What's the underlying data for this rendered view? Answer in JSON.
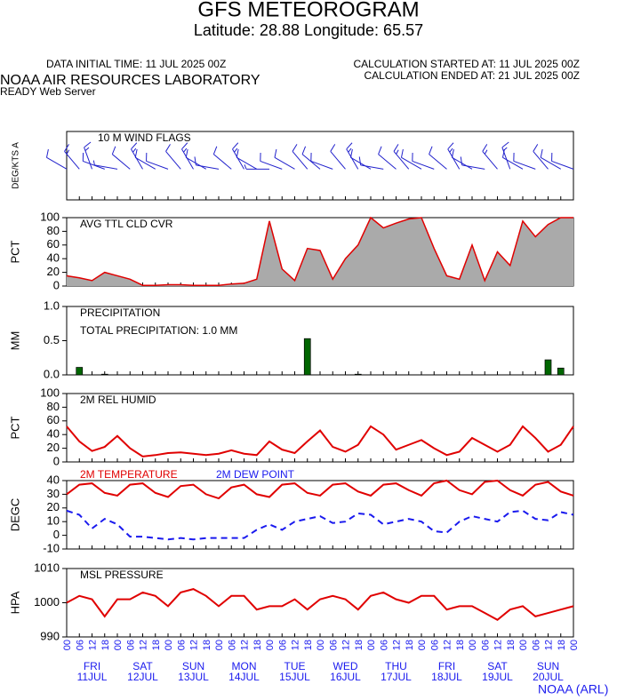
{
  "title": "GFS METEOROGRAM",
  "subtitle": "Latitude: 28.88 Longitude:  65.57",
  "data_initial": "DATA INITIAL TIME: 11 JUL 2025 00Z",
  "calc_started": "CALCULATION STARTED AT: 11 JUL 2025 00Z",
  "calc_ended": "CALCULATION ENDED AT: 21 JUL 2025 00Z",
  "lab": "NOAA AIR RESOURCES LABORATORY",
  "server": "READY Web Server",
  "credit": "NOAA (ARL)",
  "time_axis": {
    "xlim": [
      0,
      240
    ],
    "x": [
      0,
      6,
      12,
      18,
      24,
      30,
      36,
      42,
      48,
      54,
      60,
      66,
      72,
      78,
      84,
      90,
      96,
      102,
      108,
      114,
      120,
      126,
      132,
      138,
      144,
      150,
      156,
      162,
      168,
      174,
      180,
      186,
      192,
      198,
      204,
      210,
      216,
      222,
      228,
      234,
      240
    ],
    "xticks": [
      {
        "value": 0,
        "label": "00"
      },
      {
        "value": 6,
        "label": "06"
      },
      12,
      18,
      {
        "value": 24,
        "label": "00"
      },
      {
        "value": 30,
        "label": "06"
      },
      {
        "value": 36,
        "label": "12"
      },
      {
        "value": 42,
        "label": "18"
      },
      {
        "value": 48,
        "label": "00"
      },
      {
        "value": 54,
        "label": "06"
      },
      {
        "value": 60,
        "label": "12"
      },
      {
        "value": 66,
        "label": "18"
      },
      {
        "value": 72,
        "label": "00"
      },
      {
        "value": 78,
        "label": "06"
      },
      {
        "value": 84,
        "label": "12"
      },
      {
        "value": 90,
        "label": "18"
      },
      {
        "value": 96,
        "label": "00"
      },
      {
        "value": 102,
        "label": "06"
      },
      {
        "value": 108,
        "label": "12"
      },
      {
        "value": 114,
        "label": "18"
      },
      {
        "value": 120,
        "label": "00"
      },
      {
        "value": 126,
        "label": "06"
      },
      {
        "value": 132,
        "label": "12"
      },
      {
        "value": 138,
        "label": "18"
      },
      {
        "value": 144,
        "label": "00"
      },
      {
        "value": 150,
        "label": "06"
      },
      {
        "value": 156,
        "label": "12"
      },
      {
        "value": 162,
        "label": "18"
      },
      {
        "value": 168,
        "label": "00"
      },
      {
        "value": 174,
        "label": "06"
      },
      {
        "value": 180,
        "label": "12"
      },
      {
        "value": 186,
        "label": "18"
      },
      {
        "value": 192,
        "label": "00"
      },
      {
        "value": 198,
        "label": "06"
      },
      {
        "value": 204,
        "label": "12"
      },
      {
        "value": 210,
        "label": "18"
      },
      {
        "value": 216,
        "label": "00"
      },
      {
        "value": 222,
        "label": "06"
      },
      {
        "value": 228,
        "label": "12"
      },
      {
        "value": 234,
        "label": "18"
      },
      {
        "value": 240,
        "label": "00"
      }
    ],
    "days": [
      {
        "value": 12,
        "day": "FRI",
        "date": "11JUL"
      },
      {
        "value": 36,
        "day": "SAT",
        "date": "12JUL"
      },
      {
        "value": 60,
        "day": "SUN",
        "date": "13JUL"
      },
      {
        "value": 84,
        "day": "MON",
        "date": "14JUL"
      },
      {
        "value": 108,
        "day": "TUE",
        "date": "15JUL"
      },
      {
        "value": 132,
        "day": "WED",
        "date": "16JUL"
      },
      {
        "value": 156,
        "day": "THU",
        "date": "17JUL"
      },
      {
        "value": 180,
        "day": "FRI",
        "date": "18JUL"
      },
      {
        "value": 204,
        "day": "SAT",
        "date": "19JUL"
      },
      {
        "value": 228,
        "day": "SUN",
        "date": "20JUL"
      }
    ]
  },
  "chart_data": [
    {
      "type": "barbs",
      "title": "10 M  WIND FLAGS",
      "ylabel": "DEG/KTS  A",
      "color": "#2222cc",
      "speed": [
        12,
        15,
        18,
        10,
        8,
        14,
        16,
        12,
        10,
        14,
        15,
        12,
        10,
        14,
        16,
        12,
        8,
        10,
        12,
        14,
        12,
        10,
        14,
        16,
        12,
        10,
        14,
        15,
        12,
        10,
        14,
        16,
        12,
        10,
        15,
        18,
        12,
        10,
        14,
        12,
        10
      ],
      "direction": [
        300,
        320,
        340,
        290,
        280,
        310,
        330,
        300,
        290,
        320,
        330,
        300,
        280,
        310,
        330,
        300,
        270,
        290,
        300,
        320,
        310,
        290,
        320,
        330,
        300,
        280,
        310,
        320,
        300,
        290,
        310,
        330,
        300,
        280,
        320,
        340,
        300,
        290,
        320,
        300,
        290
      ]
    },
    {
      "type": "area",
      "title": "AVG TTL CLD CVR",
      "ylabel": "PCT",
      "ylim": [
        0,
        100
      ],
      "yticks": [
        0,
        20,
        40,
        60,
        80,
        100
      ],
      "color": "#e00000",
      "fill": "#aaaaaa",
      "values": [
        15,
        12,
        8,
        20,
        15,
        10,
        1,
        1,
        2,
        2,
        1,
        1,
        1,
        3,
        4,
        10,
        95,
        25,
        8,
        55,
        52,
        10,
        40,
        60,
        100,
        85,
        92,
        98,
        100,
        55,
        15,
        10,
        60,
        8,
        50,
        30,
        95,
        72,
        90,
        100,
        100
      ]
    },
    {
      "type": "bar",
      "title": "PRECIPITATION",
      "annotation": "TOTAL PRECIPITATION:   1.0 MM",
      "ylabel": "MM",
      "ylim": [
        0,
        1
      ],
      "yticks": [
        {
          "value": 0,
          "label": "0.0"
        },
        0.5,
        {
          "value": 1,
          "label": "1.0"
        }
      ],
      "color": "#006600",
      "values": [
        0,
        0.11,
        0,
        0.01,
        0,
        0,
        0,
        0,
        0,
        0,
        0,
        0,
        0,
        0,
        0,
        0,
        0,
        0,
        0,
        0.53,
        0,
        0,
        0,
        0.01,
        0,
        0,
        0,
        0,
        0,
        0,
        0,
        0,
        0,
        0,
        0,
        0,
        0,
        0,
        0.22,
        0.1,
        0
      ]
    },
    {
      "type": "line",
      "title": "2M REL HUMID",
      "ylabel": "PCT",
      "ylim": [
        0,
        100
      ],
      "yticks": [
        0,
        20,
        40,
        60,
        80,
        100
      ],
      "series": [
        {
          "name": null,
          "color": "#e00000",
          "dashed": false,
          "values": [
            52,
            30,
            16,
            22,
            38,
            20,
            8,
            10,
            13,
            14,
            12,
            10,
            12,
            17,
            12,
            10,
            30,
            18,
            13,
            30,
            46,
            22,
            15,
            25,
            52,
            40,
            18,
            25,
            32,
            20,
            10,
            15,
            35,
            25,
            15,
            25,
            52,
            35,
            15,
            25,
            52
          ]
        }
      ]
    },
    {
      "type": "line",
      "ylabel": "DEGC",
      "ylim": [
        -10,
        40
      ],
      "yticks": [
        -10,
        0,
        10,
        20,
        30,
        40
      ],
      "series": [
        {
          "name": "2M TEMPERATURE",
          "color": "#e00000",
          "dashed": false,
          "values": [
            30,
            37,
            38,
            31,
            29,
            37,
            38,
            31,
            28,
            36,
            37,
            30,
            27,
            35,
            37,
            30,
            28,
            37,
            38,
            31,
            29,
            37,
            38,
            32,
            29,
            37,
            38,
            33,
            29,
            38,
            40,
            33,
            30,
            39,
            40,
            33,
            29,
            37,
            39,
            32,
            29
          ]
        },
        {
          "name": "2M   DEW POINT",
          "color": "#1a1aee",
          "dashed": true,
          "values": [
            18,
            15,
            5,
            12,
            8,
            -1,
            -1,
            -2,
            -3,
            -2,
            -3,
            -2,
            -2,
            -2,
            -2,
            4,
            8,
            4,
            10,
            12,
            14,
            9,
            10,
            16,
            15,
            8,
            10,
            12,
            10,
            3,
            2,
            10,
            14,
            12,
            10,
            17,
            18,
            12,
            11,
            17,
            15
          ]
        }
      ]
    },
    {
      "type": "line",
      "title": "MSL PRESSURE",
      "ylabel": "HPA",
      "ylim": [
        990,
        1010
      ],
      "yticks": [
        990,
        1000,
        1010
      ],
      "series": [
        {
          "name": null,
          "color": "#e00000",
          "dashed": false,
          "values": [
            1000,
            1002,
            1001,
            996,
            1001,
            1001,
            1003,
            1002,
            999,
            1003,
            1004,
            1002,
            999,
            1002,
            1002,
            998,
            999,
            999,
            1001,
            998,
            1001,
            1002,
            1001,
            998,
            1002,
            1003,
            1001,
            1000,
            1002,
            1002,
            998,
            999,
            999,
            997,
            995,
            998,
            999,
            996,
            997,
            998,
            999
          ]
        }
      ]
    }
  ]
}
